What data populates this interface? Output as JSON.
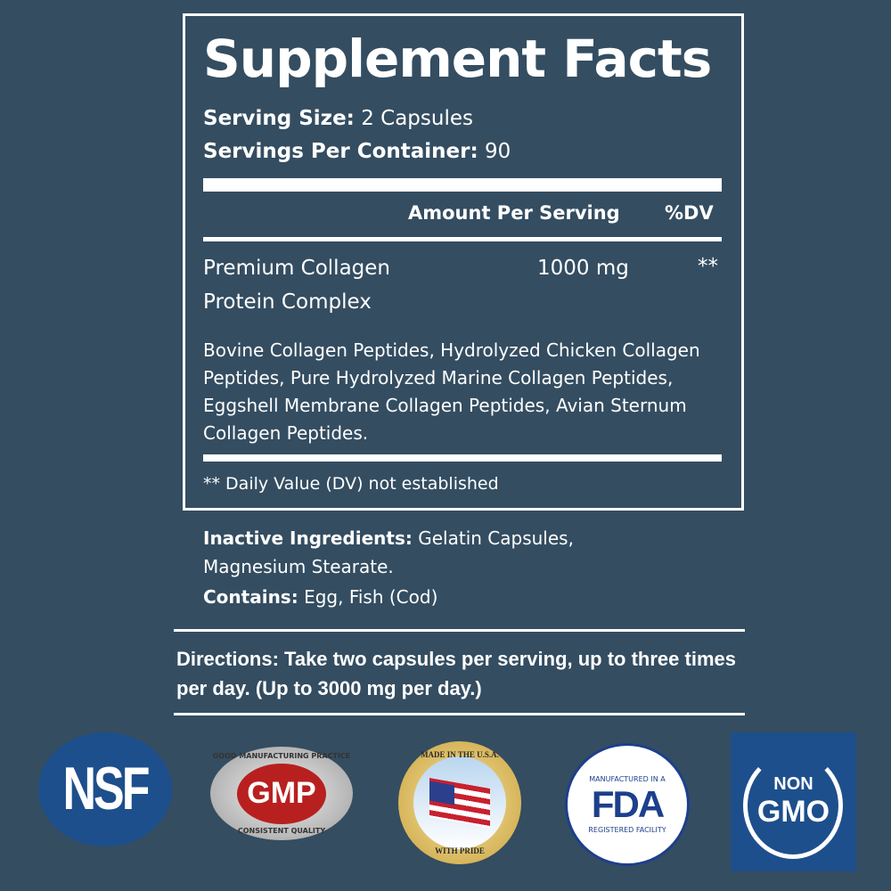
{
  "title": "Supplement Facts",
  "serving_size": {
    "label": "Serving Size:",
    "value": "2 Capsules"
  },
  "servings_per_container": {
    "label": "Servings Per Container:",
    "value": "90"
  },
  "headers": {
    "amount": "Amount Per Serving",
    "dv": "%DV"
  },
  "item": {
    "name_line1": "Premium Collagen",
    "name_line2": "Protein Complex",
    "amount": "1000 mg",
    "dv": "**"
  },
  "ingredients": "Bovine Collagen Peptides, Hydrolyzed Chicken Collagen Peptides, Pure Hydrolyzed Marine Collagen Peptides, Eggshell Membrane Collagen Peptides, Avian Sternum Collagen Peptides.",
  "footnote": "** Daily Value (DV) not established",
  "inactive": {
    "label": "Inactive Ingredients:",
    "value": " Gelatin Capsules, Magnesium Stearate."
  },
  "contains": {
    "label": "Contains:",
    "value": " Egg, Fish (Cod)"
  },
  "directions": "Directions: Take two capsules per serving, up to three times per day. (Up to 3000 mg per day.)",
  "badges": {
    "nsf": "NSF",
    "gmp": "GMP",
    "gmp_top": "GOOD MANUFACTURING PRACTICE",
    "gmp_bottom": "CONSISTENT QUALITY",
    "usa_top": "MADE IN THE U.S.A.",
    "usa_bottom": "WITH PRIDE",
    "fda_top": "MANUFACTURED IN A",
    "fda": "FDA",
    "fda_bottom": "REGISTERED FACILITY",
    "nongmo_1": "NON",
    "nongmo_2": "GMO"
  },
  "colors": {
    "background": "#344d61",
    "badge_blue": "#1d4f8c",
    "gmp_red": "#b8201f"
  }
}
